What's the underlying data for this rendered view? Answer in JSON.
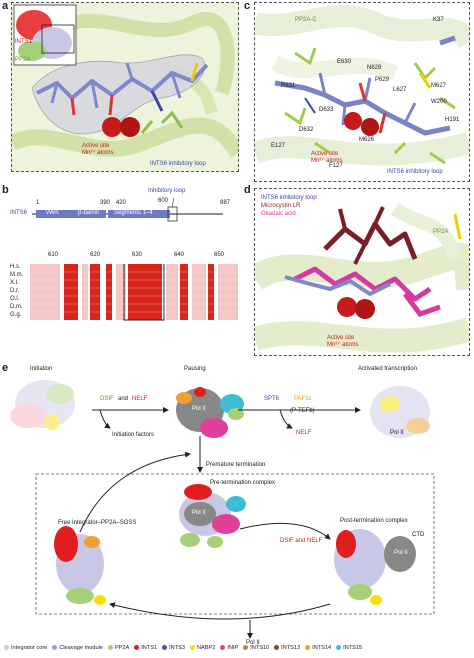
{
  "panel_a": {
    "letter": "a",
    "inset_labels": {
      "ints1": "INTS1",
      "pp2a": "PP2A"
    },
    "active_site": "Active site\nMn²⁺ atoms",
    "loop": "INTS6 inhibitory loop"
  },
  "panel_b": {
    "letter": "b",
    "inhibitory_loop": "Inhibitory loop",
    "ints6": "INTS6",
    "start": "1",
    "end": "887",
    "domain_vwa": "vWA",
    "domain_barrel": "β-barrel",
    "domain_segments": "Segments 1–4",
    "pos_390": "390",
    "pos_420": "420",
    "pos_600": "600",
    "ticks": [
      "610",
      "620",
      "630",
      "640",
      "650"
    ],
    "species": [
      "H.s.",
      "M.m.",
      "X.l.",
      "D.r.",
      "O.l.",
      "D.m.",
      "G.g."
    ]
  },
  "panel_c": {
    "letter": "c",
    "pp2a_c": "PP2A-C",
    "residues": [
      "K37",
      "E630",
      "N628",
      "R631",
      "P629",
      "L627",
      "M627",
      "D633",
      "W200",
      "D632",
      "M626",
      "H191",
      "E127",
      "F127"
    ],
    "active_site": "Active site\nMn²⁺ atoms",
    "loop": "INTS6 inhibitory loop"
  },
  "panel_d": {
    "letter": "d",
    "legend": [
      "INTS6 inhibitory loop",
      "Microcystin LR",
      "Okadaic acid"
    ],
    "pp2a": "PP2A",
    "active_site": "Active site\nMn²⁺ atoms"
  },
  "panel_e": {
    "letter": "e",
    "initiation": "Initiation",
    "pausing": "Pausing",
    "activated": "Activated transcription",
    "dsif": "DSIF",
    "and": "and",
    "nelf": "NELF",
    "spt6": "SPT6",
    "paf1c": "PAF1c",
    "ptefb": "(P-TEFb)",
    "nelf_minus": "NELF",
    "initiation_factors": "Initiation factors",
    "pol2": "Pol II",
    "premature": "Premature termination",
    "pretermination": "Pre-termination complex",
    "free_complex": "Free Integrator–PP2A–SOSS",
    "post_termination": "Post-termination complex",
    "ctd": "CTD",
    "dsif_nelf": "DSIF and NELF"
  },
  "legend": [
    {
      "label": "Integrator core",
      "color": "#c8c8e6"
    },
    {
      "label": "Cleavage module",
      "color": "#9aa0d6"
    },
    {
      "label": "PP2A",
      "color": "#a4d07a"
    },
    {
      "label": "INTS1",
      "color": "#e11d1d"
    },
    {
      "label": "INTS3",
      "color": "#4a54b8"
    },
    {
      "label": "NABP2",
      "color": "#f5e000"
    },
    {
      "label": "INIP",
      "color": "#e0409a"
    },
    {
      "label": "INTS10",
      "color": "#b98a3e"
    },
    {
      "label": "INTS13",
      "color": "#7a4a2a"
    },
    {
      "label": "INTS14",
      "color": "#f0a030"
    },
    {
      "label": "INTS15",
      "color": "#3bbdd6"
    }
  ]
}
